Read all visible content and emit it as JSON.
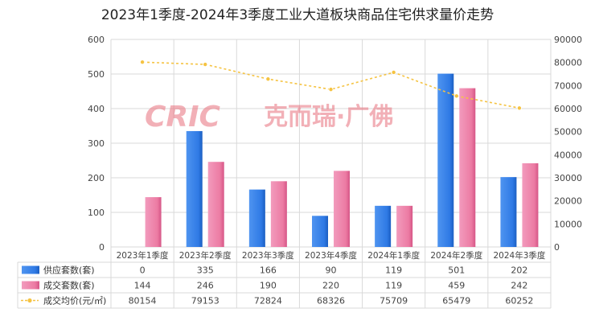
{
  "chart_data": {
    "type": "bar",
    "title": "2023年1季度-2024年3季度工业大道板块商品住宅供求量价走势",
    "categories": [
      "2023年1季度",
      "2023年2季度",
      "2023年3季度",
      "2023年4季度",
      "2024年1季度",
      "2024年2季度",
      "2024年3季度"
    ],
    "series": [
      {
        "name": "供应套数(套)",
        "type": "bar",
        "axis": "left",
        "color": "#2f7ae5",
        "values": [
          0,
          335,
          166,
          90,
          119,
          501,
          202
        ]
      },
      {
        "name": "成交套数(套)",
        "type": "bar",
        "axis": "left",
        "color": "#ec7ba3",
        "values": [
          144,
          246,
          190,
          220,
          119,
          459,
          242
        ]
      },
      {
        "name": "成交均价(元/㎡)",
        "type": "line",
        "axis": "right",
        "color": "#f5c342",
        "values": [
          80154,
          79153,
          72824,
          68326,
          75709,
          65479,
          60252
        ]
      }
    ],
    "table_values": [
      [
        "0",
        "335",
        "166",
        "90",
        "119",
        "501",
        "202"
      ],
      [
        "144",
        "246",
        "190",
        "220",
        "119",
        "459",
        "242"
      ],
      [
        "80154",
        "79153",
        "72824",
        "68326",
        "75709",
        "65479",
        "60252"
      ]
    ],
    "y_left": {
      "min": 0,
      "max": 600,
      "step": 100,
      "ticks": [
        "0",
        "100",
        "200",
        "300",
        "400",
        "500",
        "600"
      ]
    },
    "y_right": {
      "min": 0,
      "max": 90000,
      "step": 10000,
      "ticks": [
        "0",
        "10000",
        "20000",
        "30000",
        "40000",
        "50000",
        "60000",
        "70000",
        "80000",
        "90000"
      ]
    },
    "grid": true,
    "legend_placement": "data-table-left",
    "watermark": {
      "logo": "CRIC",
      "text": "克而瑞·广佛"
    }
  }
}
